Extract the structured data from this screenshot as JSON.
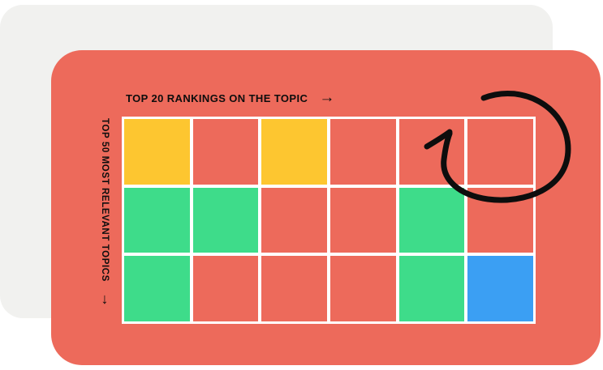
{
  "colors": {
    "page_background": "#ffffff",
    "back_card": "#f1f1ef",
    "front_card": "#ed6a5b",
    "ink": "#0d0d0d"
  },
  "header": {
    "label": "TOP 20 RANKINGS ON THE TOPIC",
    "arrow": "→"
  },
  "side_axis": {
    "label": "TOP 50 MOST RELEVANT TOPICS",
    "arrow": "↓"
  },
  "doodle": {
    "icon": "circular-arrow-sketch"
  },
  "chart_data": {
    "type": "heatmap",
    "x_axis_label": "TOP 20 RANKINGS ON THE TOPIC",
    "y_axis_label": "TOP 50 MOST RELEVANT TOPICS",
    "columns": 6,
    "rows": 3,
    "cells": [
      [
        "yellow",
        "coral",
        "yellow",
        "coral",
        "coral",
        "coral"
      ],
      [
        "green",
        "green",
        "coral",
        "coral",
        "green",
        "coral"
      ],
      [
        "green",
        "coral",
        "coral",
        "coral",
        "green",
        "blue"
      ]
    ],
    "palette": {
      "yellow": "#fdc630",
      "coral": "#ed6a5b",
      "green": "#3edc8a",
      "blue": "#3b9ff3",
      "grid_line": "#ffffff"
    },
    "legend": "off",
    "grid": "on"
  }
}
